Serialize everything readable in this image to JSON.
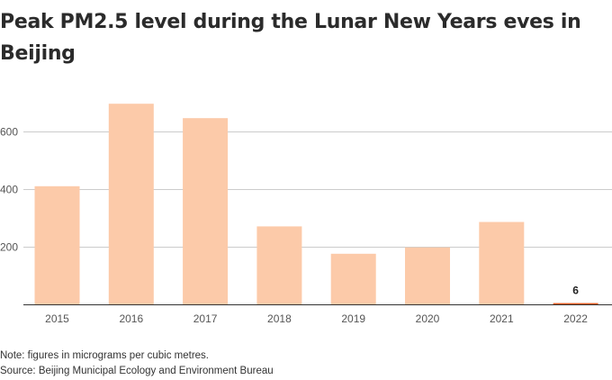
{
  "title": "Peak PM2.5 level during the Lunar New Years eves in Beijing",
  "note": "Note: figures in micrograms per cubic metres.",
  "source": "Source: Beijing Municipal Ecology and Environment Bureau",
  "colors": {
    "bar": "#fccaa9",
    "highlight": "#e05a20",
    "grid": "#cccccc",
    "baseline": "#333333"
  },
  "chart_data": {
    "type": "bar",
    "title": "Peak PM2.5 level during the Lunar New Years eves in Beijing",
    "categories": [
      "2015",
      "2016",
      "2017",
      "2018",
      "2019",
      "2020",
      "2021",
      "2022"
    ],
    "values": [
      411,
      697,
      647,
      272,
      177,
      199,
      287,
      6
    ],
    "highlight_index": 7,
    "data_labels": [
      {
        "index": 7,
        "text": "6"
      }
    ],
    "yticks": [
      200,
      400,
      600
    ],
    "ylim": [
      0,
      760
    ],
    "grid": true,
    "xlabel": "",
    "ylabel": ""
  }
}
